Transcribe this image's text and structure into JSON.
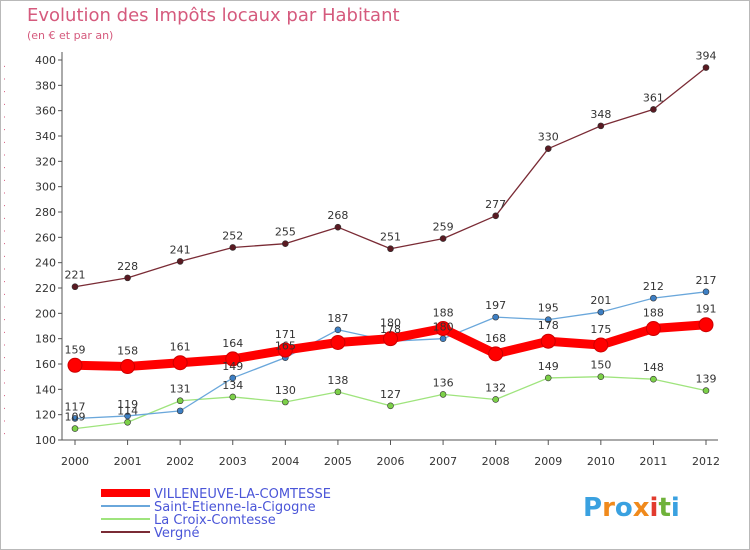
{
  "header": {
    "title": "Evolution des Impôts locaux par Habitant",
    "subtitle": "(en € et par an)"
  },
  "logo": {
    "text": "Proxiti"
  },
  "chart_data": {
    "type": "line",
    "x": [
      "2000",
      "2001",
      "2002",
      "2003",
      "2004",
      "2005",
      "2006",
      "2007",
      "2008",
      "2009",
      "2010",
      "2011",
      "2012"
    ],
    "ylim": [
      100,
      400
    ],
    "yticks": [
      100,
      120,
      140,
      160,
      180,
      200,
      220,
      240,
      260,
      280,
      300,
      320,
      340,
      360,
      380,
      400
    ],
    "grid": false,
    "legend_position": "bottom",
    "series": [
      {
        "name": "VILLENEUVE-LA-COMTESSE",
        "color": "#ff0000",
        "marker": "#ff0000",
        "values": [
          159,
          158,
          161,
          164,
          171,
          177,
          180,
          188,
          168,
          178,
          175,
          188,
          191
        ],
        "labels": [
          "159",
          "158",
          "161",
          "164",
          "171",
          "",
          "180",
          "188",
          "168",
          "178",
          "175",
          "188",
          "191"
        ]
      },
      {
        "name": "Saint-Etienne-la-Cigogne",
        "color": "#6aa7db",
        "marker": "#3d7fc4",
        "values": [
          117,
          119,
          123,
          149,
          165,
          187,
          178,
          180,
          197,
          195,
          201,
          212,
          217
        ],
        "labels": [
          "117",
          "119",
          "",
          "149",
          "165",
          "187",
          "178",
          "180",
          "197",
          "195",
          "201",
          "212",
          "217"
        ]
      },
      {
        "name": "La Croix-Comtesse",
        "color": "#9fe47d",
        "marker": "#7cd048",
        "values": [
          109,
          114,
          131,
          134,
          130,
          138,
          127,
          136,
          132,
          149,
          150,
          148,
          139
        ],
        "labels": [
          "109",
          "114",
          "131",
          "134",
          "130",
          "138",
          "127",
          "136",
          "132",
          "149",
          "150",
          "148",
          "139"
        ]
      },
      {
        "name": "Vergné",
        "color": "#7a2b35",
        "marker": "#5a1a22",
        "values": [
          221,
          228,
          241,
          252,
          255,
          268,
          251,
          259,
          277,
          330,
          348,
          361,
          394
        ],
        "labels": [
          "221",
          "228",
          "241",
          "252",
          "255",
          "268",
          "251",
          "259",
          "277",
          "330",
          "348",
          "361",
          "394"
        ]
      }
    ]
  }
}
